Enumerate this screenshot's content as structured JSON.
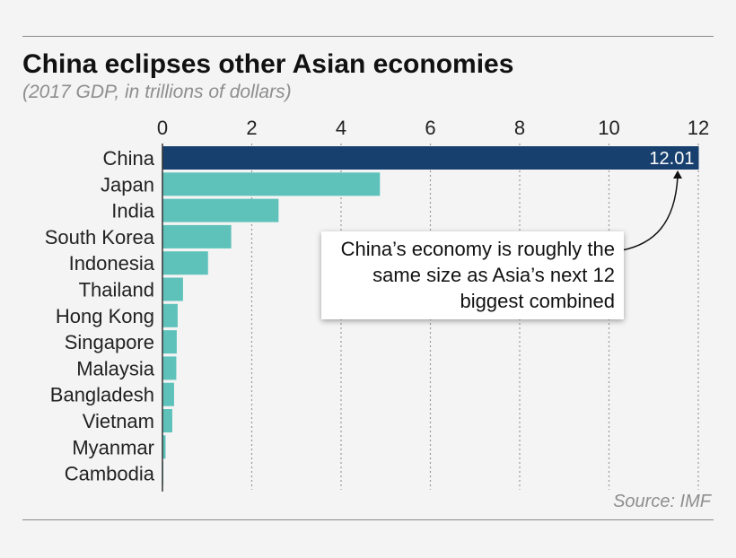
{
  "title": "China eclipses other Asian economies",
  "subtitle": "(2017 GDP, in trillions of dollars)",
  "source": "Source: IMF",
  "annotation": "China’s economy is roughly the same size as Asia’s next 12 biggest combined",
  "colors": {
    "highlight": "#18406e",
    "bar": "#5ec2ba",
    "gridline": "#9a9a9a",
    "axis": "#333333"
  },
  "chart_data": {
    "type": "bar",
    "orientation": "horizontal",
    "categories": [
      "China",
      "Japan",
      "India",
      "South Korea",
      "Indonesia",
      "Thailand",
      "Hong Kong",
      "Singapore",
      "Malaysia",
      "Bangladesh",
      "Vietnam",
      "Myanmar",
      "Cambodia"
    ],
    "values": [
      12.01,
      4.87,
      2.6,
      1.54,
      1.02,
      0.46,
      0.34,
      0.32,
      0.31,
      0.26,
      0.22,
      0.07,
      0.02
    ],
    "data_labels": [
      {
        "category": "China",
        "text": "12.01"
      }
    ],
    "xlim": [
      0,
      12
    ],
    "xticks": [
      "0",
      "2",
      "4",
      "6",
      "8",
      "10",
      "12"
    ],
    "xaxis_position": "top",
    "grid": "vertical dotted",
    "legend": "none"
  }
}
